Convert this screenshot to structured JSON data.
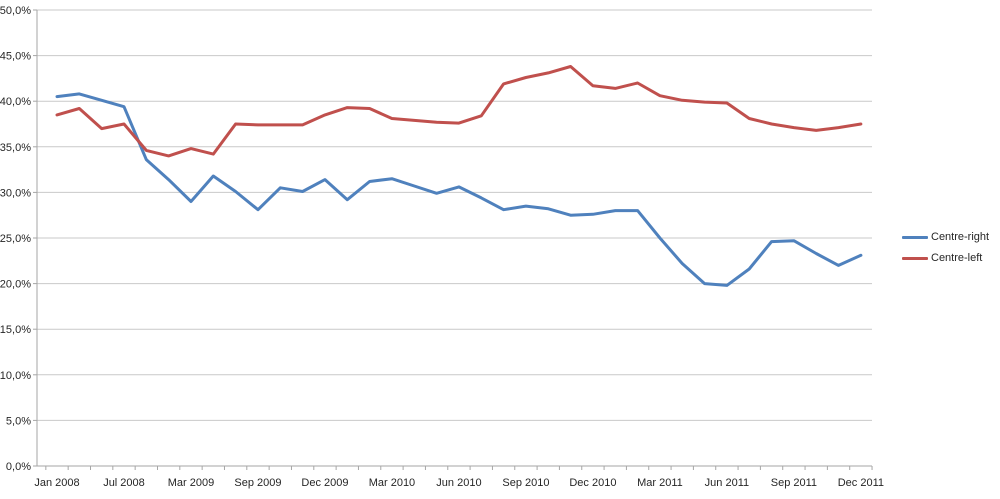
{
  "chart_data": {
    "type": "line",
    "title": "",
    "grid": "horizontal",
    "legend_position": "right",
    "background": "#FFFFFF",
    "colors": {
      "axis": "#a6a6a6",
      "gridline": "#c9c9c9",
      "text": "#262626"
    },
    "x_axis": {
      "labels": [
        "Jan 2008",
        "Jul 2008",
        "Mar 2009",
        "Sep 2009",
        "Dec 2009",
        "Mar 2010",
        "Jun 2010",
        "Sep 2010",
        "Dec 2010",
        "Mar 2011",
        "Jun 2011",
        "Sep 2011",
        "Dec 2011"
      ],
      "label_every_n_points": 3
    },
    "y_axis": {
      "min": 0,
      "max": 50,
      "step": 5,
      "tick_labels": [
        "0,0%",
        "5,0%",
        "10,0%",
        "15,0%",
        "20,0%",
        "25,0%",
        "30,0%",
        "35,0%",
        "40,0%",
        "45,0%",
        "50,0%"
      ]
    },
    "series": [
      {
        "name": "Centre-right",
        "color": "#4F81BD",
        "values": [
          40.5,
          40.8,
          40.1,
          39.4,
          33.6,
          31.4,
          29.0,
          31.8,
          30.1,
          28.1,
          30.5,
          30.1,
          31.4,
          29.2,
          31.2,
          31.5,
          30.7,
          29.9,
          30.6,
          29.4,
          28.1,
          28.5,
          28.2,
          27.5,
          27.6,
          28.0,
          28.0,
          25.0,
          22.2,
          20.0,
          19.8,
          21.6,
          24.6,
          24.7,
          23.3,
          22.0,
          23.1
        ]
      },
      {
        "name": "Centre-left",
        "color": "#C0504D",
        "values": [
          38.5,
          39.2,
          37.0,
          37.5,
          34.6,
          34.0,
          34.8,
          34.2,
          37.5,
          37.4,
          37.4,
          37.4,
          38.5,
          39.3,
          39.2,
          38.1,
          37.9,
          37.7,
          37.6,
          38.4,
          41.9,
          42.6,
          43.1,
          43.8,
          41.7,
          41.4,
          42.0,
          40.6,
          40.1,
          39.9,
          39.8,
          38.1,
          37.5,
          37.1,
          36.8,
          37.1,
          37.5
        ]
      }
    ]
  }
}
